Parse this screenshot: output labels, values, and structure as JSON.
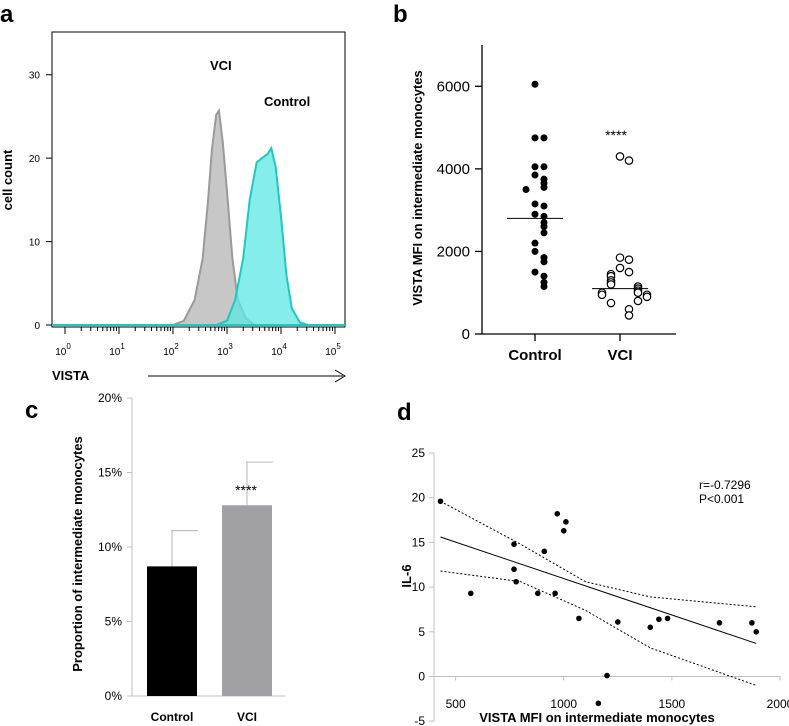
{
  "chart_data": [
    {
      "panel": "a",
      "type": "area",
      "title": "",
      "xlabel": "VISTA",
      "ylabel": "cell count",
      "xscale": "log",
      "x_tick_labels": [
        {
          "base": "10",
          "exp": "0"
        },
        {
          "base": "10",
          "exp": "1"
        },
        {
          "base": "10",
          "exp": "2"
        },
        {
          "base": "10",
          "exp": "3"
        },
        {
          "base": "10",
          "exp": "4"
        },
        {
          "base": "10",
          "exp": "5"
        }
      ],
      "y_ticks": [
        0,
        10,
        20,
        30
      ],
      "ylim": [
        0,
        35
      ],
      "series": [
        {
          "name": "VCI",
          "color": "#bdbdbd",
          "edge": "#9a9a9a",
          "points": [
            [
              2.0,
              0
            ],
            [
              2.2,
              0.5
            ],
            [
              2.4,
              3
            ],
            [
              2.55,
              8
            ],
            [
              2.65,
              15
            ],
            [
              2.72,
              21
            ],
            [
              2.8,
              25.2
            ],
            [
              2.85,
              25.7
            ],
            [
              2.92,
              22
            ],
            [
              3.0,
              16
            ],
            [
              3.1,
              8
            ],
            [
              3.2,
              3
            ],
            [
              3.35,
              0.8
            ],
            [
              3.5,
              0
            ]
          ]
        },
        {
          "name": "Control",
          "color": "#5ce8e3",
          "edge": "#1ec9c4",
          "points": [
            [
              2.8,
              0
            ],
            [
              3.0,
              0.5
            ],
            [
              3.15,
              3
            ],
            [
              3.3,
              8
            ],
            [
              3.42,
              15
            ],
            [
              3.55,
              19.5
            ],
            [
              3.65,
              20
            ],
            [
              3.75,
              20.5
            ],
            [
              3.82,
              21.2
            ],
            [
              3.9,
              19
            ],
            [
              4.0,
              13
            ],
            [
              4.1,
              6
            ],
            [
              4.2,
              2
            ],
            [
              4.35,
              0.3
            ],
            [
              4.5,
              0
            ]
          ]
        }
      ],
      "annotations": [
        "VCI",
        "Control"
      ]
    },
    {
      "panel": "b",
      "type": "scatter",
      "ylabel": "VISTA MFI on intermediate monocytes",
      "categories": [
        "Control",
        "VCI"
      ],
      "ylim": [
        0,
        7000
      ],
      "y_ticks": [
        0,
        2000,
        4000,
        6000
      ],
      "significance": "****",
      "series": [
        {
          "name": "Control",
          "marker": "filled",
          "median": 2800,
          "values": [
            6050,
            4750,
            4750,
            4050,
            4050,
            3850,
            3750,
            3650,
            3550,
            3500,
            3150,
            3100,
            2900,
            2850,
            2700,
            2600,
            2450,
            2200,
            2000,
            1850,
            1750,
            1500,
            1400,
            1250,
            1150
          ]
        },
        {
          "name": "VCI",
          "marker": "open",
          "median": 1100,
          "values": [
            4300,
            4200,
            1850,
            1800,
            1600,
            1500,
            1450,
            1400,
            1300,
            1250,
            1200,
            1150,
            1100,
            1050,
            1000,
            1000,
            950,
            950,
            900,
            800,
            750,
            600,
            450
          ]
        }
      ]
    },
    {
      "panel": "c",
      "type": "bar",
      "ylabel": "Proportion of  intermediate monocytes",
      "categories": [
        "Control",
        "VCI"
      ],
      "values": [
        8.7,
        12.8
      ],
      "errors": [
        2.4,
        2.9
      ],
      "colors": [
        "#000000",
        "#a0a0a5"
      ],
      "ylim": [
        0,
        20
      ],
      "y_tick_labels": [
        "0%",
        "5%",
        "10%",
        "15%",
        "20%"
      ],
      "significance": "****"
    },
    {
      "panel": "d",
      "type": "scatter",
      "xlabel": "VISTA MFI on intermediate monocytes",
      "ylabel": "IL-6",
      "xlim": [
        400,
        2000
      ],
      "ylim": [
        -5,
        25
      ],
      "x_ticks": [
        500,
        1000,
        1500,
        2000
      ],
      "y_ticks": [
        -5,
        0,
        5,
        10,
        15,
        20,
        25
      ],
      "stats": [
        "r=-0.7296",
        "P<0.001"
      ],
      "points": [
        [
          430,
          19.6
        ],
        [
          570,
          9.3
        ],
        [
          770,
          14.8
        ],
        [
          770,
          12.0
        ],
        [
          780,
          10.6
        ],
        [
          880,
          9.3
        ],
        [
          910,
          14.0
        ],
        [
          960,
          9.3
        ],
        [
          970,
          18.2
        ],
        [
          1000,
          16.3
        ],
        [
          1010,
          17.3
        ],
        [
          1070,
          6.5
        ],
        [
          1160,
          -3.0
        ],
        [
          1200,
          0.1
        ],
        [
          1250,
          6.1
        ],
        [
          1400,
          5.5
        ],
        [
          1440,
          6.4
        ],
        [
          1480,
          6.5
        ],
        [
          1720,
          6.0
        ],
        [
          1870,
          6.0
        ],
        [
          1890,
          5.0
        ]
      ],
      "fit_line": [
        [
          430,
          15.6
        ],
        [
          1890,
          3.7
        ]
      ],
      "ci_upper": [
        [
          430,
          19.6
        ],
        [
          800,
          14.8
        ],
        [
          1100,
          10.6
        ],
        [
          1400,
          8.9
        ],
        [
          1890,
          7.8
        ]
      ],
      "ci_lower": [
        [
          430,
          11.8
        ],
        [
          800,
          10.6
        ],
        [
          1100,
          7.4
        ],
        [
          1400,
          3.2
        ],
        [
          1890,
          -1.0
        ]
      ]
    }
  ],
  "panel_labels": [
    "a",
    "b",
    "c",
    "d"
  ]
}
